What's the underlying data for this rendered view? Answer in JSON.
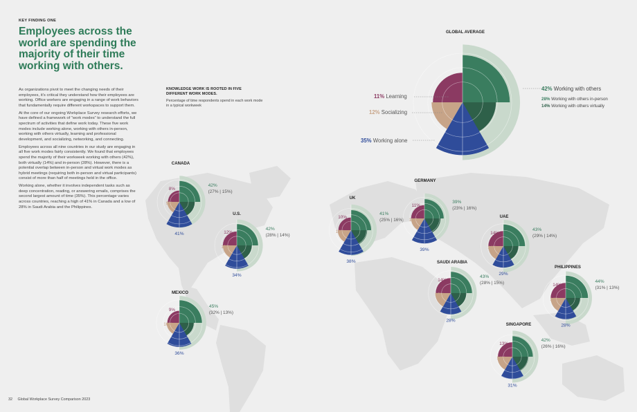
{
  "header": {
    "kicker": "KEY FINDING ONE",
    "headline": "Employees across the world are spending the majority of their time working with others."
  },
  "body_paragraphs": [
    "As organizations pivot to meet the changing needs of their employees, it’s critical they understand how their employees are working. Office workers are engaging in a range of work behaviors that fundamentally require different workspaces to support them.",
    "At the core of our ongoing Workplace Survey research efforts, we have defined a framework of “work modes” to understand the full spectrum of activities that define work today. These five work modes include working alone, working with others in-person, working with others virtually, learning and professional development, and socializing, networking, and connecting.",
    "Employees across all nine countries in our study are engaging in all five work modes fairly consistently. We found that employees spend the majority of their workweek working with others (42%), both virtually (14%) and in-person (28%). However, there is a potential overlap between in-person and virtual work modes as hybrid meetings (requiring both in-person and virtual participants) consist of more than half of meetings held in the office.",
    "Working alone, whether it involves independent tasks such as deep concentration, reading, or answering emails, comprises the second largest amount of time (35%). This percentage varies across countries, reaching a high of 41% in Canada and a low of 28% in Saudi Arabia and the Philippines."
  ],
  "knowledge": {
    "title": "KNOWLEDGE WORK IS ROOTED IN FIVE DIFFERENT WORK MODES.",
    "subtitle": "Percentage of time respondents spend in each work mode in a typical workweek"
  },
  "footer": {
    "page_number": "32",
    "publication": "Global Workplace Survey Comparison 2023"
  },
  "colors": {
    "with_others_total": "#c9d9cc",
    "in_person": "#3a7d5f",
    "virtual": "#2e6049",
    "learning": "#8b3a62",
    "socializing": "#c7a488",
    "alone": "#2f4c9a",
    "map": "#dfdfdf",
    "headline": "#2e7b58"
  },
  "chart_data": {
    "type": "polar-area",
    "title": "GLOBAL AVERAGE",
    "mode_labels": {
      "with_others": "Working with others",
      "in_person": "Working with others in-person",
      "virtual": "Working with others virtually",
      "learning": "Learning",
      "socializing": "Socializing",
      "alone": "Working alone"
    },
    "global": {
      "name": "GLOBAL AVERAGE",
      "with_others": "42%",
      "in_person": "28%",
      "virtual": "14%",
      "learning": "11%",
      "socializing": "12%",
      "alone": "35%"
    },
    "countries": [
      {
        "name": "CANADA",
        "with_others": "42%",
        "split": "(27% | 15%)",
        "learning": "8%",
        "socializing": "9%",
        "alone": "41%"
      },
      {
        "name": "U.S.",
        "with_others": "42%",
        "split": "(28% | 14%)",
        "learning": "12%",
        "socializing": "12%",
        "alone": "34%"
      },
      {
        "name": "MEXICO",
        "with_others": "45%",
        "split": "(32% | 13%)",
        "learning": "9%",
        "socializing": "10%",
        "alone": "36%"
      },
      {
        "name": "UK",
        "with_others": "41%",
        "split": "(25% | 16%)",
        "learning": "10%",
        "socializing": "11%",
        "alone": "38%"
      },
      {
        "name": "GERMANY",
        "with_others": "39%",
        "split": "(23% | 16%)",
        "learning": "11%",
        "socializing": "11%",
        "alone": "39%"
      },
      {
        "name": "UAE",
        "with_others": "43%",
        "split": "(29% | 14%)",
        "learning": "14%",
        "socializing": "14%",
        "alone": "29%"
      },
      {
        "name": "SAUDI ARABIA",
        "with_others": "43%",
        "split": "(28% | 15%)",
        "learning": "14%",
        "socializing": "15%",
        "alone": "28%"
      },
      {
        "name": "PHILIPPINES",
        "with_others": "44%",
        "split": "(31% | 13%)",
        "learning": "14%",
        "socializing": "14%",
        "alone": "28%"
      },
      {
        "name": "SINGAPORE",
        "with_others": "42%",
        "split": "(26% | 16%)",
        "learning": "13%",
        "socializing": "14%",
        "alone": "31%"
      }
    ]
  }
}
